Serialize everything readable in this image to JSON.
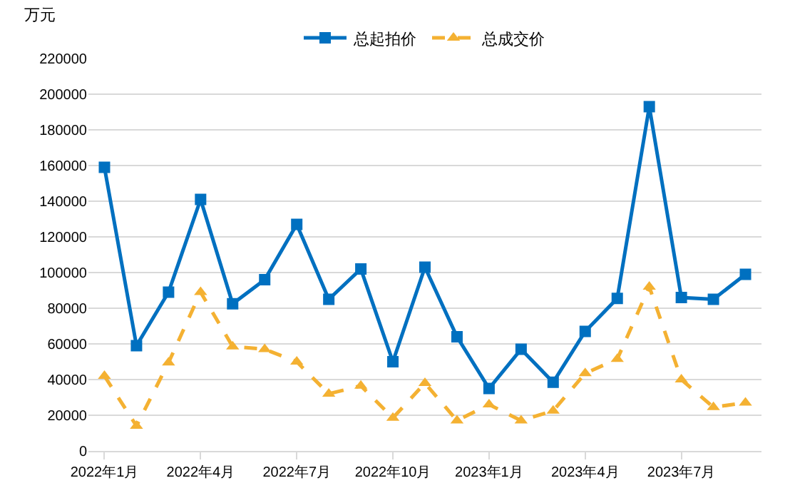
{
  "chart_data": {
    "type": "line",
    "ylabel": "万元",
    "categories": [
      "2022年1月",
      null,
      null,
      "2022年4月",
      null,
      null,
      "2022年7月",
      null,
      null,
      "2022年10月",
      null,
      null,
      "2023年1月",
      null,
      null,
      "2023年4月",
      null,
      null,
      "2023年7月",
      null,
      null
    ],
    "series": [
      {
        "name": "总起拍价",
        "color": "#0070c0",
        "marker": "square",
        "line_style": "solid",
        "values": [
          159000,
          59000,
          89000,
          141000,
          82500,
          96000,
          127000,
          85000,
          102000,
          50000,
          103000,
          64000,
          35000,
          57000,
          38500,
          67000,
          85500,
          193000,
          86000,
          85000,
          99000
        ]
      },
      {
        "name": "总成交价",
        "color": "#f4b132",
        "marker": "triangle",
        "line_style": "dashed",
        "values": [
          42000,
          14000,
          49500,
          89000,
          58500,
          57000,
          50000,
          32000,
          36500,
          18500,
          38000,
          17000,
          26000,
          17000,
          22500,
          43500,
          51500,
          92000,
          40000,
          24500,
          27000
        ]
      }
    ],
    "ylim": [
      0,
      220000
    ],
    "yticks": [
      0,
      20000,
      40000,
      60000,
      80000,
      100000,
      120000,
      140000,
      160000,
      180000,
      200000,
      220000
    ],
    "grid": "y",
    "legend": "top"
  }
}
